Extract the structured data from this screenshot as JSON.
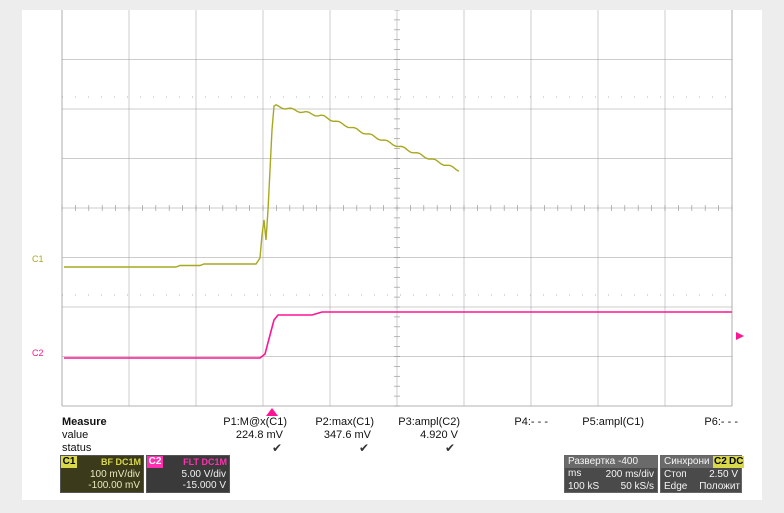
{
  "channels": {
    "c1_marker": "C1",
    "c2_marker": "C2"
  },
  "colors": {
    "ch1": "#a8a820",
    "ch2": "#ff1493",
    "grid": "#9a9a9a",
    "background": "#ffffff"
  },
  "measure": {
    "row_labels": [
      "Measure",
      "value",
      "status"
    ],
    "columns": [
      {
        "header": "P1:M@x(C1)",
        "value": "224.8 mV",
        "status": "✔"
      },
      {
        "header": "P2:max(C1)",
        "value": "347.6 mV",
        "status": "✔"
      },
      {
        "header": "P3:ampl(C2)",
        "value": "4.920 V",
        "status": "✔"
      },
      {
        "header": "P4:- - -",
        "value": "",
        "status": ""
      },
      {
        "header": "P5:ampl(C1)",
        "value": "",
        "status": ""
      },
      {
        "header": "P6:- - -",
        "value": "",
        "status": ""
      }
    ]
  },
  "ch1_box": {
    "tag": "C1",
    "mode": "BF DC1M",
    "scale": "100 mV/div",
    "offset": "-100.00 mV"
  },
  "ch2_box": {
    "tag": "C2",
    "mode": "FLT DC1M",
    "scale": "5.00 V/div",
    "offset": "-15.000 V"
  },
  "timebase": {
    "title": "Развертка -400 ms",
    "scale": "200 ms/div",
    "samples": "100 kS",
    "rate": "50 kS/s"
  },
  "trigger": {
    "title": "Синхрони",
    "source": "C2",
    "coupling": "DC",
    "state": "Стоп",
    "level": "2.50 V",
    "type": "Edge",
    "slope": "Положит"
  }
}
